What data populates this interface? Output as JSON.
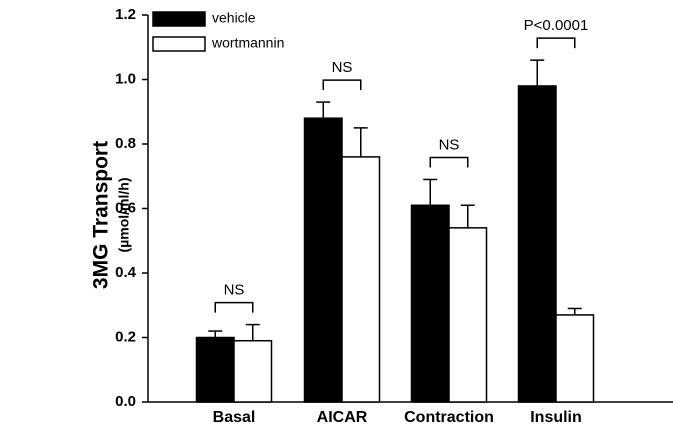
{
  "chart_data": {
    "type": "bar",
    "y_label": "3MG Transport",
    "y_unit": "(µmol/ml/h)",
    "categories": [
      "Basal",
      "AICAR",
      "Contraction",
      "Insulin"
    ],
    "series": [
      {
        "name": "vehicle",
        "color": "#000000",
        "values": [
          0.2,
          0.88,
          0.61,
          0.98
        ],
        "errors": [
          0.02,
          0.05,
          0.08,
          0.08
        ]
      },
      {
        "name": "wortmannin",
        "color": "#ffffff",
        "values": [
          0.19,
          0.76,
          0.54,
          0.27
        ],
        "errors": [
          0.05,
          0.09,
          0.07,
          0.02
        ]
      }
    ],
    "annotations": [
      "NS",
      "NS",
      "NS",
      "P<0.0001"
    ],
    "ylim": [
      0,
      1.2
    ],
    "yticks": [
      {
        "value": 0,
        "label": "0.0"
      },
      0.2,
      0.4,
      0.6,
      0.8,
      {
        "value": 1,
        "label": "1.0"
      },
      1.2
    ],
    "legend": "upper left",
    "grid": false
  }
}
